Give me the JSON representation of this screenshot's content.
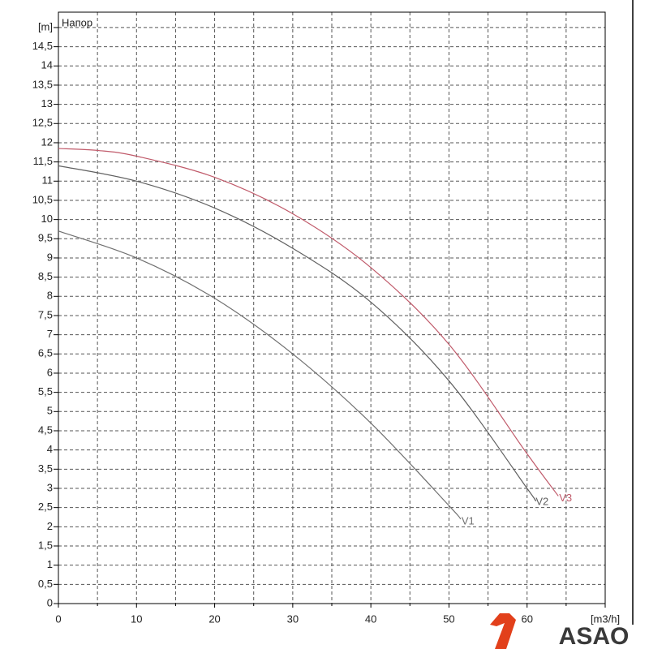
{
  "chart_data": {
    "type": "line",
    "annotation": "Напор",
    "logo": "ASAO",
    "xlim": [
      0,
      70
    ],
    "ylim": [
      0,
      15.4
    ],
    "xticks": [
      0,
      10,
      20,
      30,
      40,
      50,
      60,
      {
        "value": 70,
        "label": "[m3/h]"
      }
    ],
    "xminorticks": [
      5,
      15,
      25,
      35,
      45,
      55,
      65
    ],
    "yticks": [
      0,
      {
        "value": 0.5,
        "label": "0,5"
      },
      1,
      {
        "value": 1.5,
        "label": "1,5"
      },
      2,
      {
        "value": 2.5,
        "label": "2,5"
      },
      3,
      {
        "value": 3.5,
        "label": "3,5"
      },
      4,
      {
        "value": 4.5,
        "label": "4,5"
      },
      5,
      {
        "value": 5.5,
        "label": "5,5"
      },
      6,
      {
        "value": 6.5,
        "label": "6,5"
      },
      7,
      {
        "value": 7.5,
        "label": "7,5"
      },
      8,
      {
        "value": 8.5,
        "label": "8,5"
      },
      9,
      {
        "value": 9.5,
        "label": "9,5"
      },
      10,
      {
        "value": 10.5,
        "label": "10,5"
      },
      11,
      {
        "value": 11.5,
        "label": "11,5"
      },
      12,
      {
        "value": 12.5,
        "label": "12,5"
      },
      13,
      {
        "value": 13.5,
        "label": "13,5"
      },
      14,
      {
        "value": 14.5,
        "label": "14,5"
      },
      {
        "value": 15,
        "label": "[m]"
      }
    ],
    "grid": true,
    "series": [
      {
        "name": "V1",
        "color": "#707070",
        "x": [
          0,
          10,
          20,
          30,
          40,
          50,
          51.5
        ],
        "values": [
          9.7,
          9.0,
          7.95,
          6.5,
          4.7,
          2.55,
          2.2
        ]
      },
      {
        "name": "V2",
        "color": "#606060",
        "x": [
          0,
          10,
          20,
          30,
          40,
          50,
          60,
          61
        ],
        "values": [
          11.4,
          11.0,
          10.3,
          9.25,
          7.85,
          5.8,
          3.0,
          2.7
        ]
      },
      {
        "name": "V3",
        "color": "#c05a6a",
        "x": [
          0,
          5,
          10,
          20,
          30,
          40,
          50,
          60,
          64
        ],
        "values": [
          11.85,
          11.8,
          11.65,
          11.1,
          10.15,
          8.75,
          6.75,
          3.9,
          2.8
        ]
      }
    ]
  }
}
